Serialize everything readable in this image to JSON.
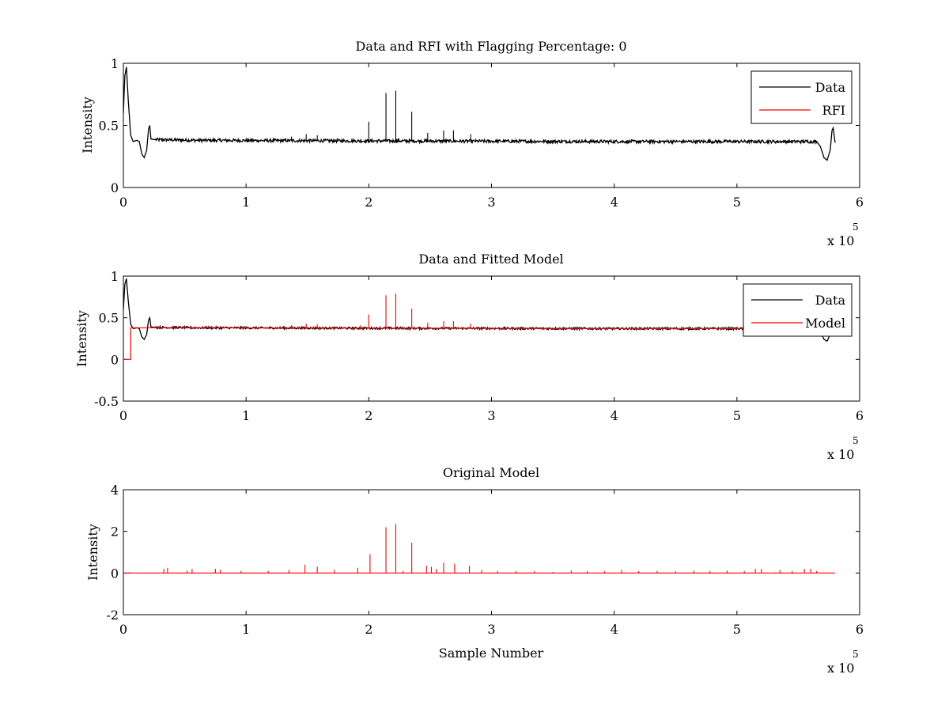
{
  "colors": {
    "data": "#000000",
    "red": "#ff0000",
    "axes": "#000000",
    "background": "#ffffff"
  },
  "chart_data": [
    {
      "type": "line",
      "title": "Data and RFI with Flagging Percentage: 0",
      "xlabel": "",
      "ylabel": "Intensity",
      "xlim": [
        0,
        600000
      ],
      "ylim": [
        0,
        1
      ],
      "xticks": [
        0,
        1,
        2,
        3,
        4,
        5,
        6
      ],
      "yticks": [
        "0",
        "0.5",
        "1"
      ],
      "x_multiplier": "x 10",
      "x_multiplier_exp": "5",
      "legend": {
        "position": "top-right",
        "entries": [
          "Data",
          "RFI"
        ]
      },
      "grid": false,
      "series": [
        {
          "name": "Data",
          "color": "#000000",
          "baseline": 0.375,
          "points": [
            [
              0,
              0.6
            ],
            [
              1200,
              0.9
            ],
            [
              2500,
              0.97
            ],
            [
              4000,
              0.7
            ],
            [
              6000,
              0.42
            ],
            [
              8000,
              0.37
            ],
            [
              11000,
              0.38
            ],
            [
              13000,
              0.37
            ],
            [
              15000,
              0.27
            ],
            [
              17000,
              0.24
            ],
            [
              19000,
              0.3
            ],
            [
              20500,
              0.47
            ],
            [
              21500,
              0.5
            ],
            [
              22500,
              0.39
            ],
            [
              26000,
              0.385
            ],
            [
              60000,
              0.38
            ],
            [
              200000,
              0.375
            ],
            [
              400000,
              0.37
            ],
            [
              565000,
              0.37
            ],
            [
              568000,
              0.33
            ],
            [
              571000,
              0.24
            ],
            [
              573500,
              0.22
            ],
            [
              576000,
              0.3
            ],
            [
              577500,
              0.46
            ],
            [
              578500,
              0.48
            ],
            [
              579500,
              0.4
            ],
            [
              580000,
              0.36
            ]
          ],
          "spikes": [
            [
              200000,
              0.53
            ],
            [
              214000,
              0.76
            ],
            [
              222000,
              0.78
            ],
            [
              235000,
              0.61
            ],
            [
              248000,
              0.44
            ],
            [
              261000,
              0.46
            ],
            [
              269000,
              0.46
            ],
            [
              283000,
              0.43
            ],
            [
              149000,
              0.43
            ],
            [
              158000,
              0.42
            ],
            [
              137000,
              0.41
            ]
          ]
        },
        {
          "name": "RFI",
          "color": "#ff0000",
          "points": []
        }
      ]
    },
    {
      "type": "line",
      "title": "Data and Fitted Model",
      "xlabel": "",
      "ylabel": "Intensity",
      "xlim": [
        0,
        600000
      ],
      "ylim": [
        -0.5,
        1
      ],
      "xticks": [
        0,
        1,
        2,
        3,
        4,
        5,
        6
      ],
      "yticks": [
        "-0.5",
        "0",
        "0.5",
        "1"
      ],
      "x_multiplier": "x 10",
      "x_multiplier_exp": "5",
      "legend": {
        "position": "top-right",
        "entries": [
          "Data",
          "Model"
        ]
      },
      "grid": false,
      "series": [
        {
          "name": "Data",
          "color": "#000000",
          "baseline": 0.375,
          "points": [
            [
              0,
              0.6
            ],
            [
              1200,
              0.9
            ],
            [
              2500,
              0.97
            ],
            [
              4000,
              0.7
            ],
            [
              6000,
              0.42
            ],
            [
              8000,
              0.37
            ],
            [
              11000,
              0.38
            ],
            [
              13000,
              0.37
            ],
            [
              15000,
              0.27
            ],
            [
              17000,
              0.24
            ],
            [
              19000,
              0.3
            ],
            [
              20500,
              0.47
            ],
            [
              21500,
              0.5
            ],
            [
              22500,
              0.39
            ],
            [
              26000,
              0.385
            ],
            [
              60000,
              0.38
            ],
            [
              200000,
              0.375
            ],
            [
              400000,
              0.37
            ],
            [
              565000,
              0.37
            ],
            [
              568000,
              0.33
            ],
            [
              571000,
              0.24
            ],
            [
              573500,
              0.22
            ],
            [
              576000,
              0.3
            ],
            [
              577500,
              0.46
            ],
            [
              578500,
              0.48
            ],
            [
              579500,
              0.4
            ],
            [
              580000,
              0.36
            ]
          ]
        },
        {
          "name": "Model",
          "color": "#ff0000",
          "baseline": 0.375,
          "points": [
            [
              0,
              0
            ],
            [
              6000,
              0
            ],
            [
              6000,
              0.38
            ],
            [
              60000,
              0.38
            ],
            [
              200000,
              0.375
            ],
            [
              400000,
              0.37
            ],
            [
              580000,
              0.37
            ]
          ],
          "spikes": [
            [
              200000,
              0.54
            ],
            [
              214000,
              0.77
            ],
            [
              222000,
              0.79
            ],
            [
              235000,
              0.61
            ],
            [
              248000,
              0.44
            ],
            [
              261000,
              0.46
            ],
            [
              269000,
              0.46
            ],
            [
              283000,
              0.43
            ],
            [
              149000,
              0.43
            ],
            [
              158000,
              0.42
            ],
            [
              137000,
              0.41
            ],
            [
              193000,
              0.41
            ],
            [
              98000,
              0.4
            ]
          ]
        }
      ]
    },
    {
      "type": "line",
      "title": "Original Model",
      "xlabel": "Sample Number",
      "ylabel": "Intensity",
      "xlim": [
        0,
        600000
      ],
      "ylim": [
        -2,
        4
      ],
      "xticks": [
        0,
        1,
        2,
        3,
        4,
        5,
        6
      ],
      "yticks": [
        "-2",
        "0",
        "2",
        "4"
      ],
      "x_multiplier": "x 10",
      "x_multiplier_exp": "5",
      "grid": false,
      "series": [
        {
          "color": "#ff0000",
          "baseline": 0,
          "points": [
            [
              0,
              0
            ],
            [
              580000,
              0
            ]
          ],
          "spikes": [
            [
              5000,
              0.05
            ],
            [
              33000,
              0.2
            ],
            [
              36000,
              0.25
            ],
            [
              52000,
              0.12
            ],
            [
              56000,
              0.2
            ],
            [
              75000,
              0.2
            ],
            [
              79000,
              0.15
            ],
            [
              96000,
              0.1
            ],
            [
              118000,
              0.1
            ],
            [
              135000,
              0.15
            ],
            [
              148000,
              0.4
            ],
            [
              158000,
              0.3
            ],
            [
              172000,
              0.15
            ],
            [
              191000,
              0.25
            ],
            [
              201000,
              0.9
            ],
            [
              214000,
              2.2
            ],
            [
              222000,
              2.35
            ],
            [
              228000,
              0.1
            ],
            [
              235000,
              1.45
            ],
            [
              247000,
              0.35
            ],
            [
              251000,
              0.3
            ],
            [
              255000,
              0.2
            ],
            [
              261000,
              0.5
            ],
            [
              270000,
              0.45
            ],
            [
              282000,
              0.35
            ],
            [
              292000,
              0.15
            ],
            [
              305000,
              0.1
            ],
            [
              320000,
              0.1
            ],
            [
              335000,
              0.1
            ],
            [
              350000,
              0.05
            ],
            [
              365000,
              0.12
            ],
            [
              378000,
              0.1
            ],
            [
              392000,
              0.1
            ],
            [
              406000,
              0.15
            ],
            [
              420000,
              0.1
            ],
            [
              435000,
              0.1
            ],
            [
              450000,
              0.1
            ],
            [
              465000,
              0.12
            ],
            [
              478000,
              0.1
            ],
            [
              492000,
              0.12
            ],
            [
              506000,
              0.1
            ],
            [
              515000,
              0.2
            ],
            [
              520000,
              0.2
            ],
            [
              535000,
              0.15
            ],
            [
              545000,
              0.1
            ],
            [
              555000,
              0.2
            ],
            [
              560000,
              0.2
            ],
            [
              565000,
              0.1
            ]
          ]
        }
      ]
    }
  ]
}
